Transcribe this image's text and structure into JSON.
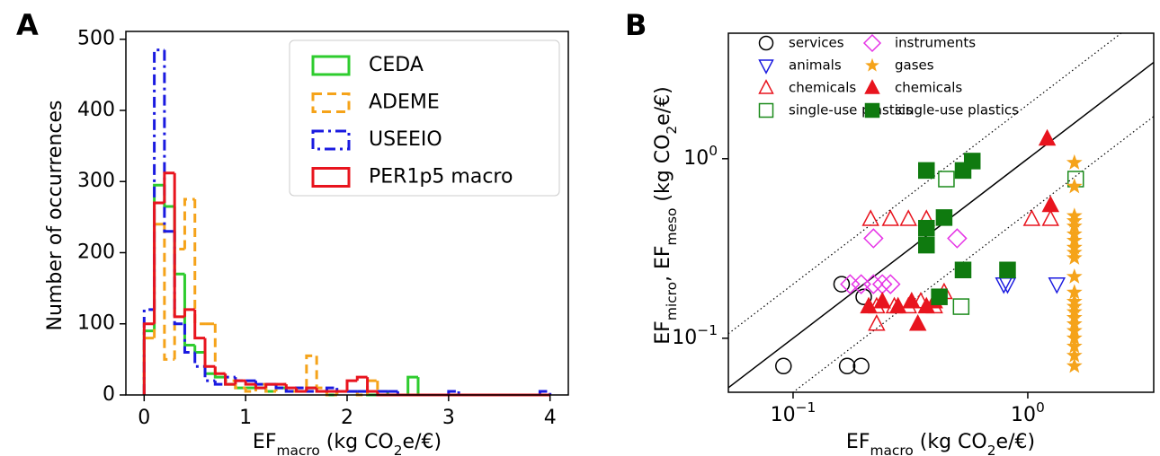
{
  "chart_data": [
    {
      "type": "step_histogram",
      "panel_label": "A",
      "xlabel": [
        {
          "text": "EF"
        },
        {
          "text": "macro",
          "sub": true
        },
        {
          "text": " (kg CO"
        },
        {
          "text": "2",
          "sub": true
        },
        {
          "text": "e/€)"
        }
      ],
      "ylabel": [
        {
          "text": "Number of occurrences"
        }
      ],
      "xlim": [
        -0.18,
        4.18
      ],
      "ylim": [
        0,
        511
      ],
      "xticks": [
        0,
        1,
        2,
        3,
        4
      ],
      "yticks": [
        0,
        100,
        200,
        300,
        400,
        500
      ],
      "legend": "upper right",
      "bins": [
        0,
        0.1,
        0.2,
        0.3,
        0.4,
        0.5,
        0.6,
        0.7,
        0.8,
        0.9,
        1.0,
        1.1,
        1.2,
        1.3,
        1.4,
        1.5,
        1.6,
        1.7,
        1.8,
        1.9,
        2.0,
        2.1,
        2.2,
        2.3,
        2.4,
        2.5,
        2.6,
        2.7,
        2.8,
        2.9,
        3.0,
        3.1,
        3.2,
        3.3,
        3.4,
        3.5,
        3.6,
        3.7,
        3.8,
        3.9,
        4.0
      ],
      "series": [
        {
          "name": "CEDA",
          "color": "#2ecc2e",
          "dash": "solid",
          "values": [
            90,
            295,
            265,
            170,
            70,
            60,
            30,
            25,
            15,
            10,
            10,
            10,
            5,
            10,
            5,
            5,
            10,
            5,
            0,
            5,
            5,
            5,
            0,
            5,
            0,
            0,
            25,
            0,
            0,
            0,
            0,
            0,
            0,
            0,
            0,
            0,
            0,
            0,
            0,
            0
          ]
        },
        {
          "name": "ADEME",
          "color": "#f5a31a",
          "dash": "dashed",
          "values": [
            80,
            240,
            50,
            205,
            275,
            100,
            100,
            30,
            20,
            10,
            5,
            15,
            5,
            15,
            5,
            10,
            55,
            10,
            0,
            5,
            5,
            0,
            20,
            0,
            0,
            0,
            0,
            0,
            0,
            0,
            0,
            0,
            0,
            0,
            0,
            0,
            0,
            0,
            0,
            0
          ]
        },
        {
          "name": "USEEIO",
          "color": "#1a1ae0",
          "dash": "dashdot",
          "values": [
            120,
            485,
            230,
            100,
            60,
            40,
            20,
            15,
            25,
            20,
            20,
            15,
            15,
            10,
            5,
            10,
            5,
            5,
            10,
            5,
            5,
            5,
            5,
            5,
            5,
            0,
            0,
            0,
            0,
            0,
            5,
            0,
            0,
            0,
            0,
            0,
            0,
            0,
            0,
            5
          ]
        },
        {
          "name": "PER1p5 macro",
          "color": "#e8141e",
          "dash": "solid",
          "values": [
            100,
            270,
            312,
            110,
            120,
            80,
            40,
            30,
            15,
            20,
            15,
            10,
            15,
            15,
            10,
            5,
            10,
            5,
            5,
            5,
            20,
            25,
            5,
            0,
            0,
            0,
            0,
            0,
            0,
            0,
            0,
            0,
            0,
            0,
            0,
            0,
            0,
            0,
            0,
            0
          ]
        }
      ]
    },
    {
      "type": "scatter",
      "panel_label": "B",
      "log_x": true,
      "log_y": true,
      "xlabel": [
        {
          "text": "EF"
        },
        {
          "text": "macro",
          "sub": true
        },
        {
          "text": " (kg CO"
        },
        {
          "text": "2",
          "sub": true
        },
        {
          "text": "e/€)"
        }
      ],
      "ylabel": [
        {
          "text": "EF"
        },
        {
          "text": "micro",
          "sub": true
        },
        {
          "text": ", EF"
        },
        {
          "text": "meso",
          "sub": true
        },
        {
          "text": " (kg CO"
        },
        {
          "text": "2",
          "sub": true
        },
        {
          "text": "e/€)"
        }
      ],
      "xlim": [
        0.053,
        3.44
      ],
      "ylim": [
        0.05,
        5
      ],
      "xticks": [
        {
          "value": 0.1,
          "label": "10",
          "exponent": "−1"
        },
        {
          "value": 1,
          "label": "10",
          "exponent": "0"
        }
      ],
      "yticks": [
        {
          "value": 0.1,
          "label": "10",
          "exponent": "−1"
        },
        {
          "value": 1,
          "label": "10",
          "exponent": "0"
        }
      ],
      "reference_lines": [
        {
          "factor": 1,
          "style": "solid"
        },
        {
          "factor": 2,
          "style": "dotted"
        },
        {
          "factor": 0.5,
          "style": "dotted"
        }
      ],
      "legend": "upper left",
      "legend_columns": 2,
      "series": [
        {
          "name": "services",
          "color": "#000000",
          "marker": "circle",
          "filled": false,
          "x": [
            0.091,
            0.161,
            0.17,
            0.195,
            0.2
          ],
          "y": [
            0.07,
            0.2,
            0.07,
            0.07,
            0.17
          ]
        },
        {
          "name": "animals",
          "color": "#1a1ae0",
          "marker": "triangle-down",
          "filled": false,
          "x": [
            0.79,
            0.82,
            1.33
          ],
          "y": [
            0.2,
            0.2,
            0.2
          ]
        },
        {
          "name": "chemicals",
          "color": "#e8141e",
          "marker": "triangle-up",
          "filled": false,
          "x": [
            0.214,
            0.26,
            0.31,
            0.37,
            0.227,
            0.227,
            0.27,
            0.31,
            0.35,
            0.4,
            0.44,
            1.04,
            1.25
          ],
          "y": [
            0.46,
            0.46,
            0.46,
            0.46,
            0.15,
            0.12,
            0.15,
            0.15,
            0.16,
            0.15,
            0.18,
            0.46,
            0.46
          ]
        },
        {
          "name": "single-use plastics",
          "color": "#1a8a1a",
          "marker": "square",
          "filled": false,
          "x": [
            0.45,
            1.6,
            0.52
          ],
          "y": [
            0.77,
            0.77,
            0.15
          ]
        },
        {
          "name": "instruments",
          "color": "#e633e6",
          "marker": "diamond",
          "filled": false,
          "x": [
            0.22,
            0.5,
            0.175,
            0.195,
            0.22,
            0.24,
            0.26
          ],
          "y": [
            0.36,
            0.36,
            0.2,
            0.2,
            0.2,
            0.2,
            0.2
          ]
        },
        {
          "name": "gases",
          "color": "#f5a31a",
          "marker": "star",
          "filled": true,
          "x": [
            1.58,
            1.58,
            1.58,
            1.58,
            1.58,
            1.58,
            1.58,
            1.58,
            1.58,
            1.58,
            1.58,
            1.58,
            1.58,
            1.58,
            1.58,
            1.58,
            1.58,
            1.58,
            1.58,
            1.58,
            1.58,
            1.58
          ],
          "y": [
            0.95,
            0.7,
            0.48,
            0.45,
            0.42,
            0.38,
            0.35,
            0.32,
            0.3,
            0.28,
            0.22,
            0.18,
            0.16,
            0.15,
            0.14,
            0.13,
            0.12,
            0.11,
            0.1,
            0.09,
            0.08,
            0.07
          ]
        },
        {
          "name": "chemicals",
          "color": "#e8141e",
          "marker": "triangle-up",
          "filled": true,
          "x": [
            1.21,
            1.25,
            0.21,
            0.24,
            0.28,
            0.32,
            0.34,
            0.37,
            0.4
          ],
          "y": [
            1.29,
            0.55,
            0.15,
            0.16,
            0.15,
            0.16,
            0.12,
            0.15,
            0.16
          ]
        },
        {
          "name": "single-use plastics",
          "color": "#0f7a0f",
          "marker": "square",
          "filled": true,
          "x": [
            0.37,
            0.53,
            0.58,
            0.44,
            0.37,
            0.37,
            0.53,
            0.42,
            0.82
          ],
          "y": [
            0.86,
            0.86,
            0.97,
            0.47,
            0.41,
            0.33,
            0.24,
            0.17,
            0.24
          ]
        }
      ]
    }
  ]
}
